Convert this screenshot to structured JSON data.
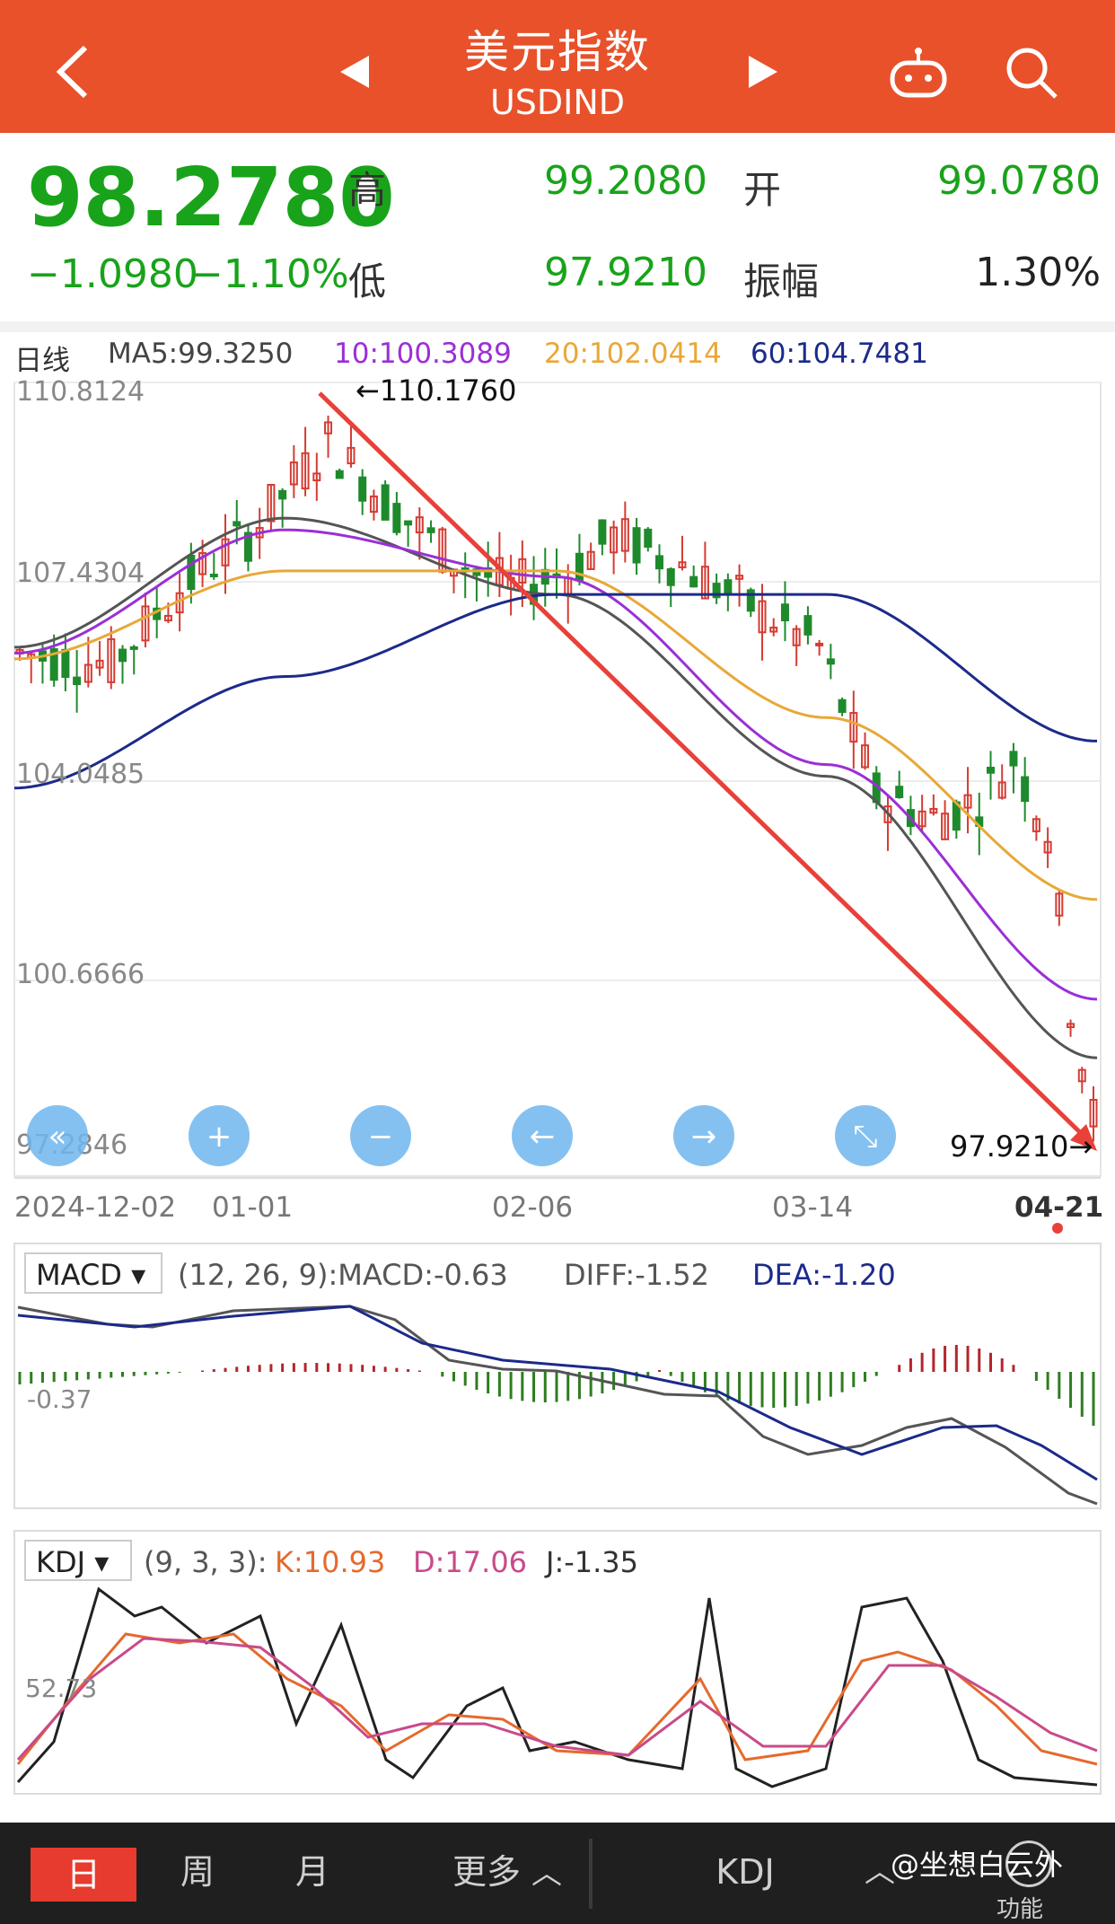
{
  "header": {
    "title": "美元指数",
    "subtitle": "USDIND"
  },
  "quote": {
    "price": "98.2780",
    "change": "−1.0980",
    "change_pct": "−1.10%",
    "high_label": "高",
    "high": "99.2080",
    "open_label": "开",
    "open": "99.0780",
    "low_label": "低",
    "low": "97.9210",
    "amp_label": "振幅",
    "amp": "1.30%",
    "color_down": "#19a31a"
  },
  "ma_legend": {
    "period": "日线",
    "ma5": "MA5:99.3250",
    "ma10": "10:100.3089",
    "ma20": "20:102.0414",
    "ma60": "60:104.7481"
  },
  "price_axis": [
    "110.8124",
    "107.4304",
    "104.0485",
    "100.6666",
    "97.2846"
  ],
  "date_axis": [
    "2024-12-02",
    "01-01",
    "02-06",
    "03-14",
    "04-21"
  ],
  "annotations": {
    "high_marker": "←110.1760",
    "low_marker": "97.9210→"
  },
  "macd": {
    "name": "MACD",
    "params": "(12, 26, 9):MACD:-0.63",
    "diff": "DIFF:-1.52",
    "dea": "DEA:-1.20",
    "axis_label": "-0.37"
  },
  "kdj": {
    "name": "KDJ",
    "params": "(9, 3, 3):",
    "k": "K:10.93",
    "d": "D:17.06",
    "j": "J:-1.35",
    "axis_label": "52.73"
  },
  "tabs": {
    "day": "日",
    "week": "周",
    "month": "月",
    "more": "更多",
    "indicator": "KDJ",
    "func": "功能"
  },
  "watermark": "@坐想白云外",
  "chart_data": {
    "type": "line",
    "x": [
      "2024-12-02",
      "2025-01-01",
      "2025-02-06",
      "2025-03-14",
      "2025-04-21"
    ],
    "ylim": [
      97.2846,
      110.8124
    ],
    "series": [
      {
        "name": "MA5",
        "values": [
          106.3,
          108.5,
          107.2,
          104.1,
          99.3
        ]
      },
      {
        "name": "10",
        "values": [
          106.2,
          108.3,
          107.5,
          104.3,
          100.3
        ]
      },
      {
        "name": "20",
        "values": [
          106.1,
          107.6,
          107.6,
          105.1,
          102.0
        ]
      },
      {
        "name": "60",
        "values": [
          103.9,
          105.8,
          107.2,
          107.2,
          104.7
        ]
      }
    ]
  }
}
